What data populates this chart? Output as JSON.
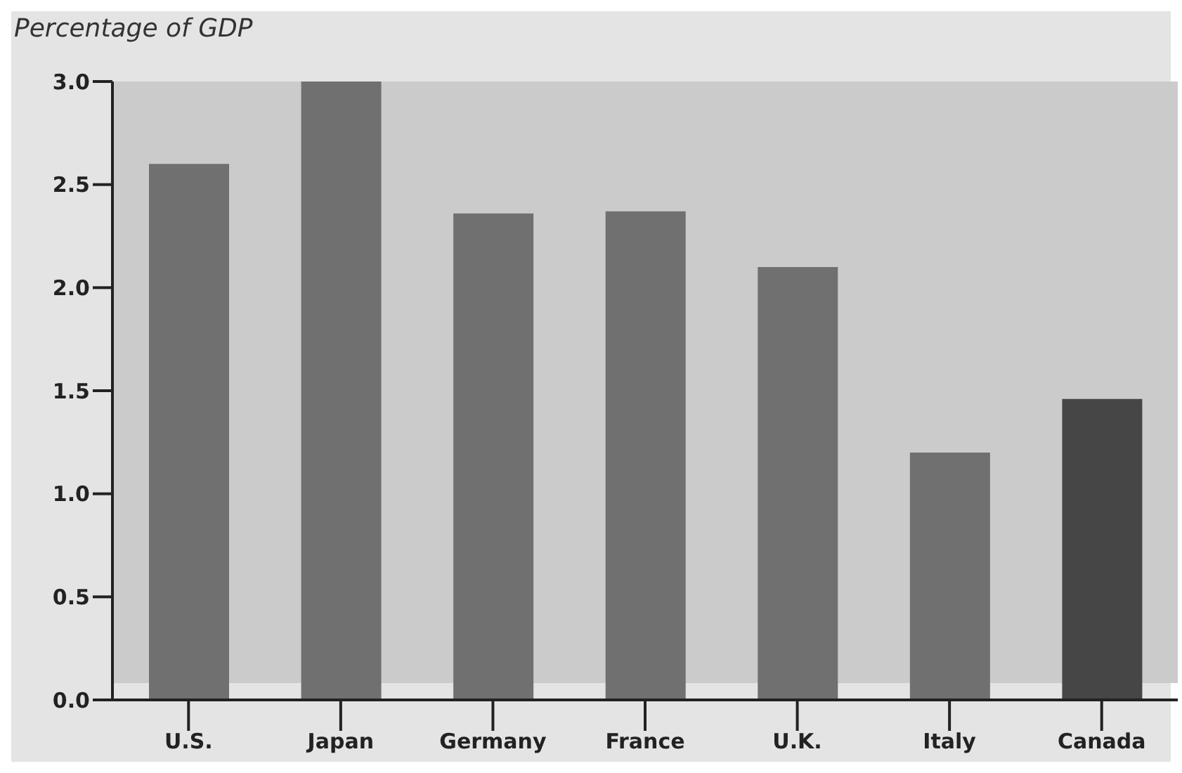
{
  "chart_data": {
    "type": "bar",
    "ylabel": "Percentage of GDP",
    "categories": [
      "U.S.",
      "Japan",
      "Germany",
      "France",
      "U.K.",
      "Italy",
      "Canada"
    ],
    "values": [
      2.6,
      3.0,
      2.36,
      2.37,
      2.1,
      1.2,
      1.46
    ],
    "colors": [
      "#707070",
      "#707070",
      "#707070",
      "#707070",
      "#707070",
      "#707070",
      "#464646"
    ],
    "ylim": [
      0,
      3.0
    ],
    "yticks": [
      {
        "value": 0,
        "label": "0.0"
      },
      {
        "value": 0.5,
        "label": "0.5"
      },
      {
        "value": 1,
        "label": "1.0"
      },
      {
        "value": 1.5,
        "label": "1.5"
      },
      {
        "value": 2,
        "label": "2.0"
      },
      {
        "value": 2.5,
        "label": "2.5"
      },
      {
        "value": 3,
        "label": "3.0"
      }
    ],
    "grid": false,
    "legend": false
  }
}
